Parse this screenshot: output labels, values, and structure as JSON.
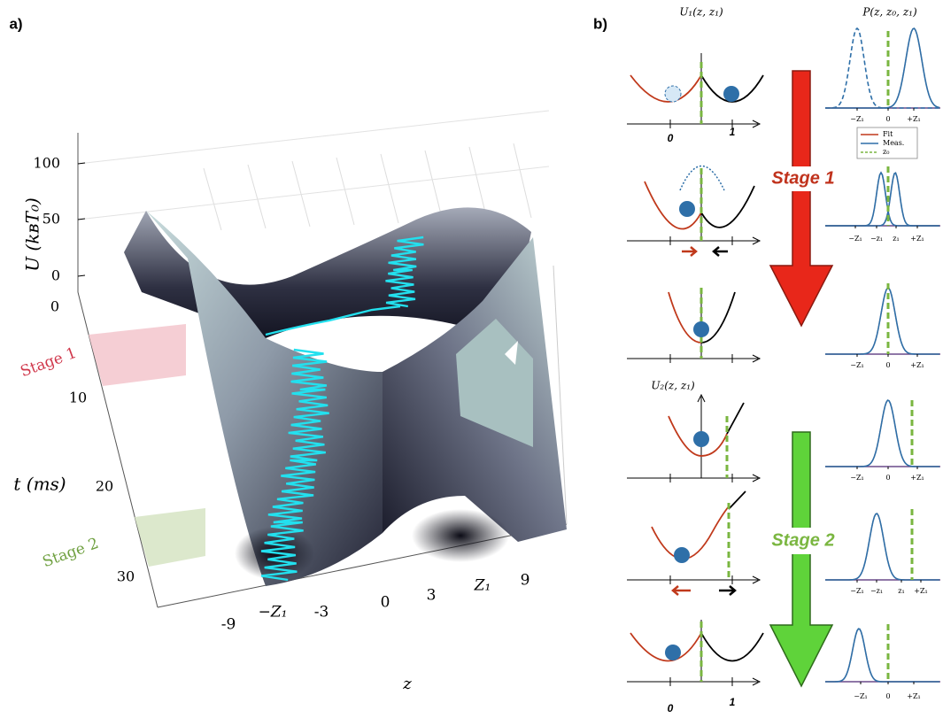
{
  "panel_a": {
    "label": "a)",
    "u_axis_label": "U (kʙT₀)",
    "u_ticks": [
      "0",
      "50",
      "100"
    ],
    "t_axis_label": "t (ms)",
    "t_ticks": [
      "0",
      "10",
      "20",
      "30"
    ],
    "z_axis_label": "z",
    "z_ticks": [
      "-9",
      "−Z₁",
      "-3",
      "0",
      "3",
      "Z₁",
      "9"
    ],
    "stage_1": "Stage 1",
    "stage_2": "Stage 2"
  },
  "panel_b": {
    "label": "b)",
    "u1_title": "U₁(z, z₁)",
    "u2_title": "U₂(z, z₁)",
    "p_title": "P(z, z₀, z₁)",
    "stage_1": "Stage 1",
    "stage_2": "Stage 2",
    "position_labels": [
      "0",
      "1"
    ],
    "legend": [
      "Fit",
      "Meas.",
      "z₀"
    ],
    "distribution_ticks": [
      [
        "−Z₁",
        "0",
        "+Z₁"
      ],
      [
        "−Z₁",
        "−z₁",
        "z₁",
        "+Z₁"
      ],
      [
        "−Z₁",
        "0",
        "+Z₁"
      ],
      [
        "−Z₁",
        "0",
        "+Z₁"
      ],
      [
        "−Z₁",
        "−z₁",
        "z₁",
        "+Z₁"
      ],
      [
        "−Z₁",
        "0",
        "+Z₁"
      ]
    ]
  }
}
